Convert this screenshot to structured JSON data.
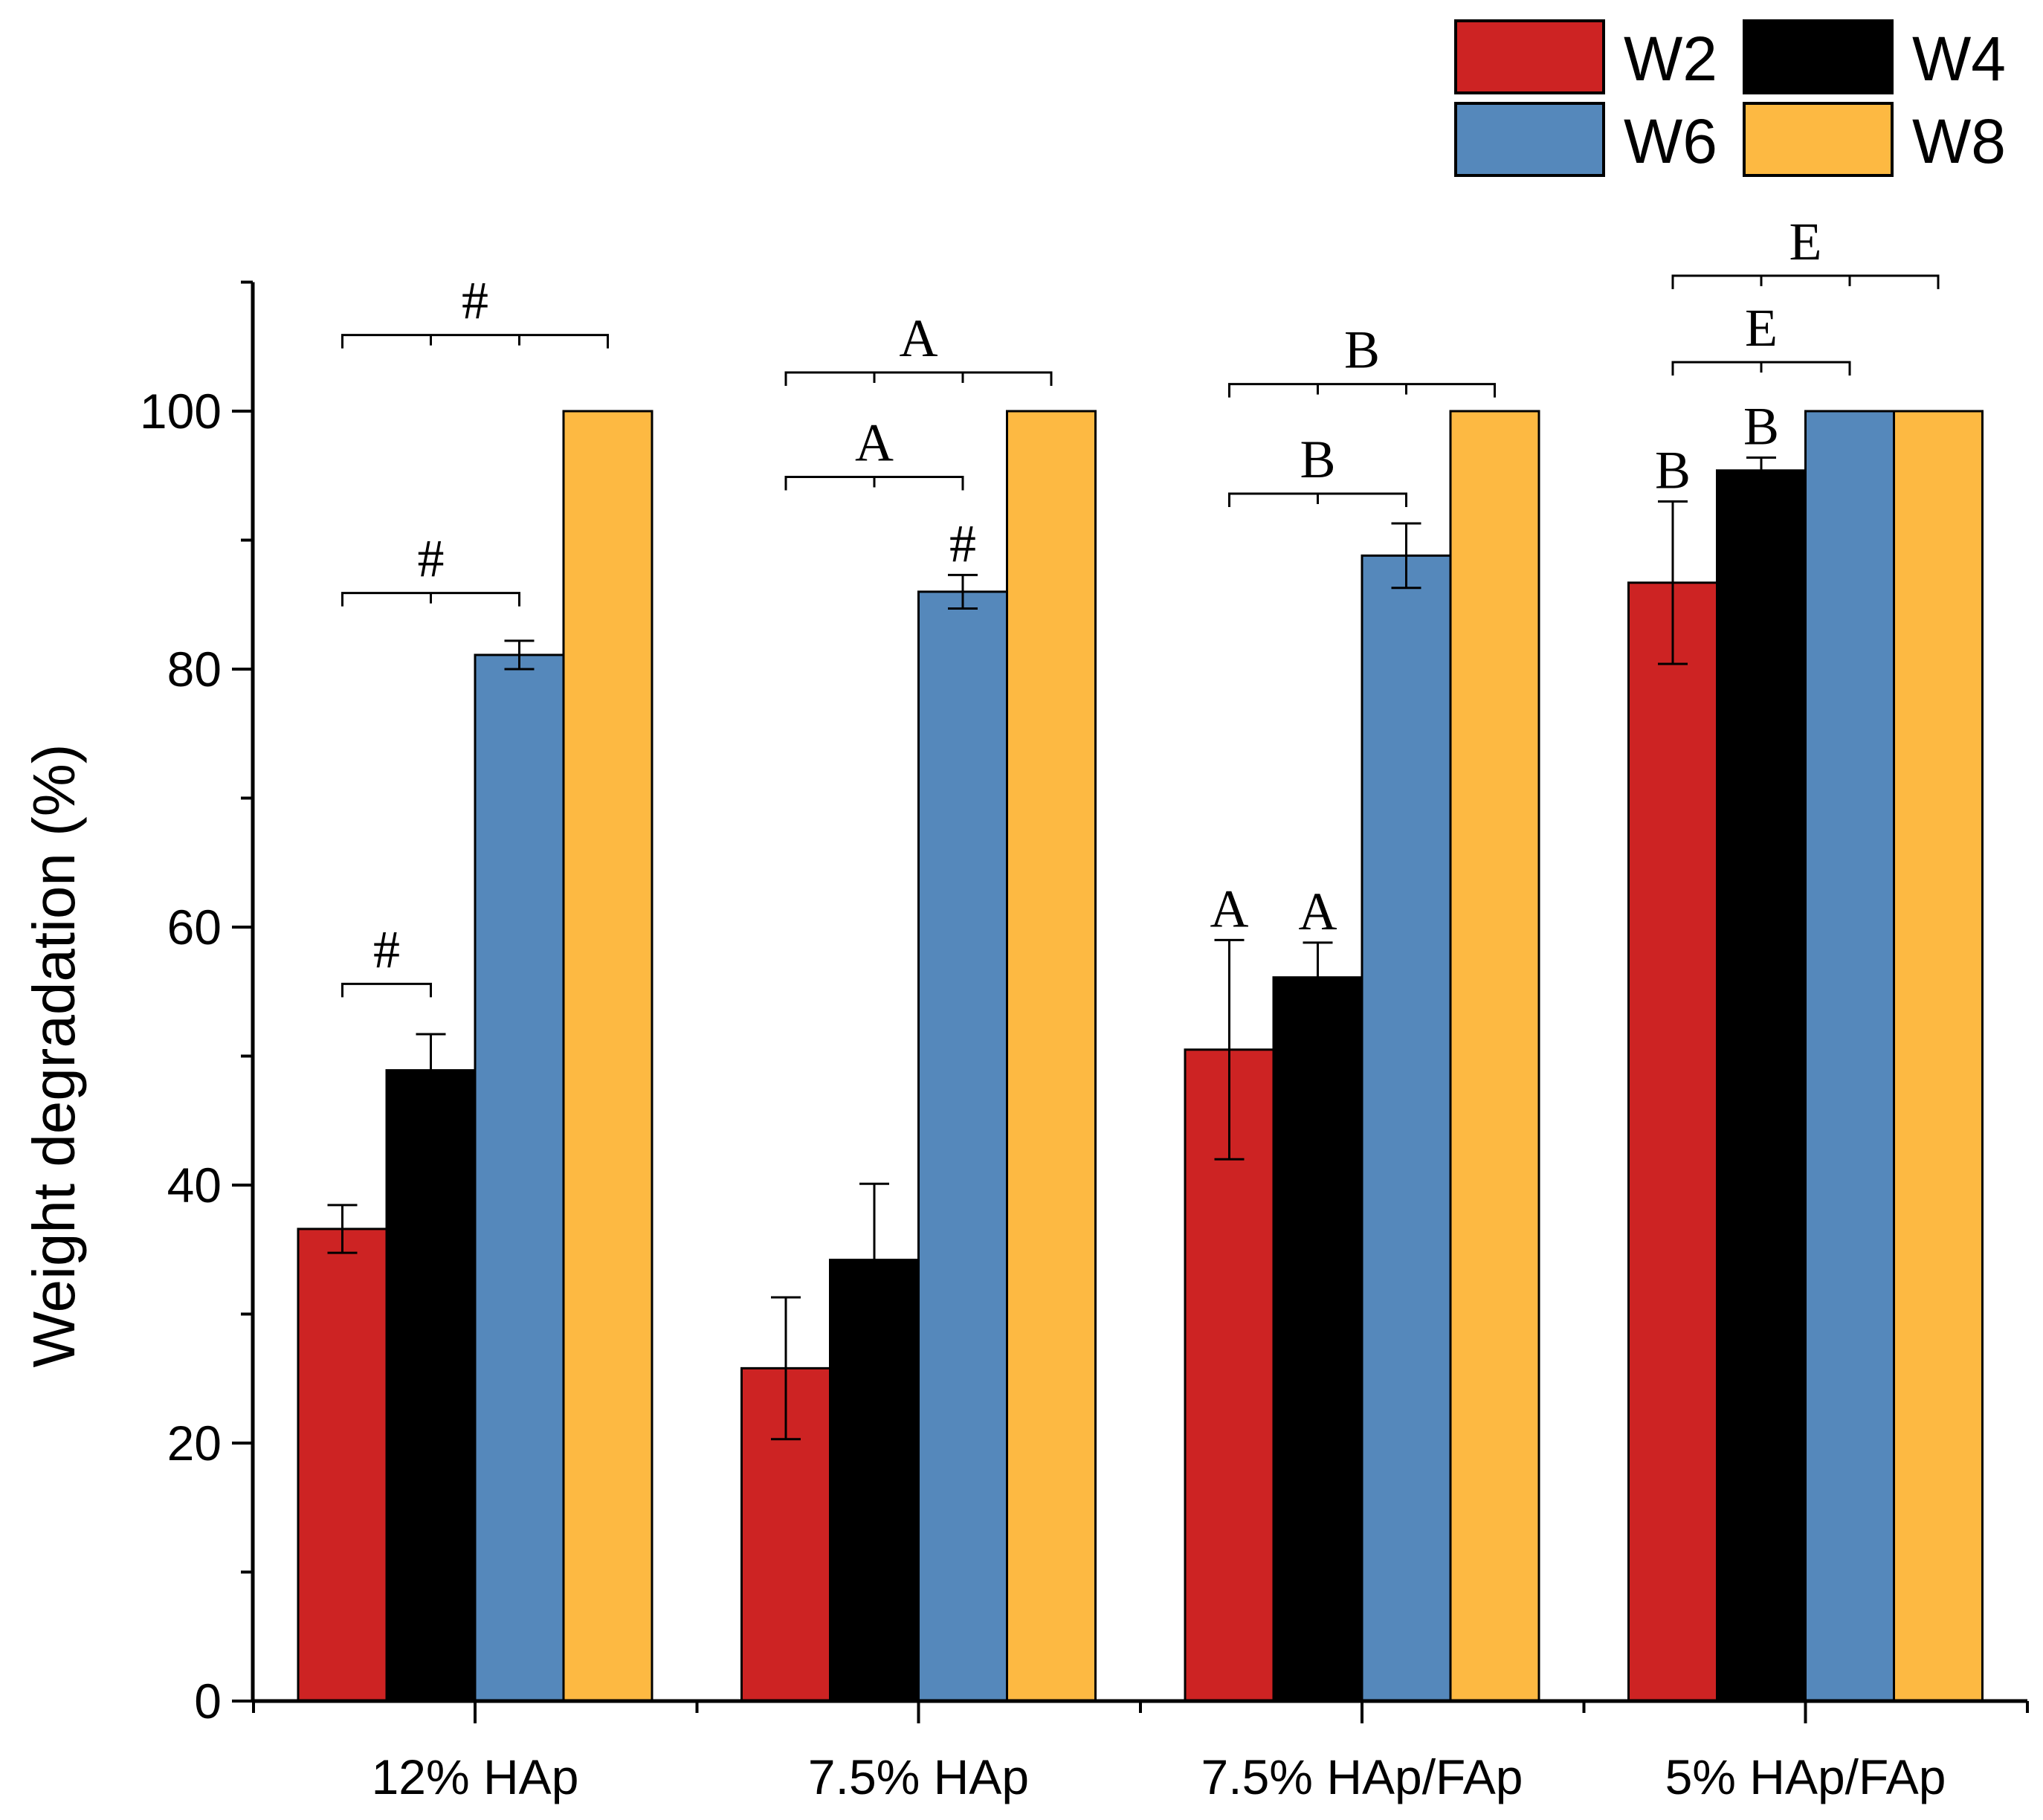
{
  "chart_data": {
    "type": "bar",
    "title": "",
    "xlabel": "",
    "ylabel": "Weight degradation (%)",
    "ylim": [
      0,
      110
    ],
    "yticks": [
      0,
      20,
      40,
      60,
      80,
      100
    ],
    "yminor_step": 10,
    "grid": false,
    "legend_position": "top-right",
    "categories": [
      "12% HAp",
      "7.5% HAp",
      "7.5% HAp/FAp",
      "5% HAp/FAp"
    ],
    "series": [
      {
        "name": "W2",
        "color": "#CD2323",
        "values": [
          36.6,
          25.8,
          50.5,
          86.7
        ],
        "errors": [
          1.85,
          5.5,
          8.5,
          6.3
        ]
      },
      {
        "name": "W4",
        "color": "#000000",
        "values": [
          48.9,
          34.2,
          56.1,
          95.4
        ],
        "errors": [
          2.8,
          5.9,
          2.7,
          1.0
        ]
      },
      {
        "name": "W6",
        "color": "#5588BB",
        "values": [
          81.1,
          86.0,
          88.8,
          100
        ],
        "errors": [
          1.1,
          1.3,
          2.5,
          0
        ]
      },
      {
        "name": "W8",
        "color": "#FDB942",
        "values": [
          100,
          100,
          100,
          100
        ],
        "errors": [
          0,
          0,
          0,
          0
        ]
      }
    ],
    "brackets": [
      {
        "group": 0,
        "from": 0,
        "to": 1,
        "level": 55.6,
        "label": "#"
      },
      {
        "group": 0,
        "from": 0,
        "to": 2,
        "level": 85.9,
        "label": "#"
      },
      {
        "group": 0,
        "from": 0,
        "to": 3,
        "level": 105.9,
        "label": "#"
      },
      {
        "group": 1,
        "from": 0,
        "to": 2,
        "level": 94.9,
        "label": "A"
      },
      {
        "group": 1,
        "from": 0,
        "to": 3,
        "level": 103.0,
        "label": "A"
      },
      {
        "group": 2,
        "from": 0,
        "to": 2,
        "level": 93.6,
        "label": "B"
      },
      {
        "group": 2,
        "from": 0,
        "to": 3,
        "level": 102.1,
        "label": "B"
      },
      {
        "group": 3,
        "from": 0,
        "to": 2,
        "level": 103.8,
        "label": "E"
      },
      {
        "group": 3,
        "from": 0,
        "to": 3,
        "level": 110.5,
        "label": "E"
      }
    ],
    "bar_labels": [
      {
        "group": 1,
        "bar": 2,
        "label": "#"
      },
      {
        "group": 2,
        "bar": 0,
        "label": "A"
      },
      {
        "group": 2,
        "bar": 1,
        "label": "A"
      },
      {
        "group": 3,
        "bar": 0,
        "label": "B"
      },
      {
        "group": 3,
        "bar": 1,
        "label": "B"
      }
    ]
  }
}
